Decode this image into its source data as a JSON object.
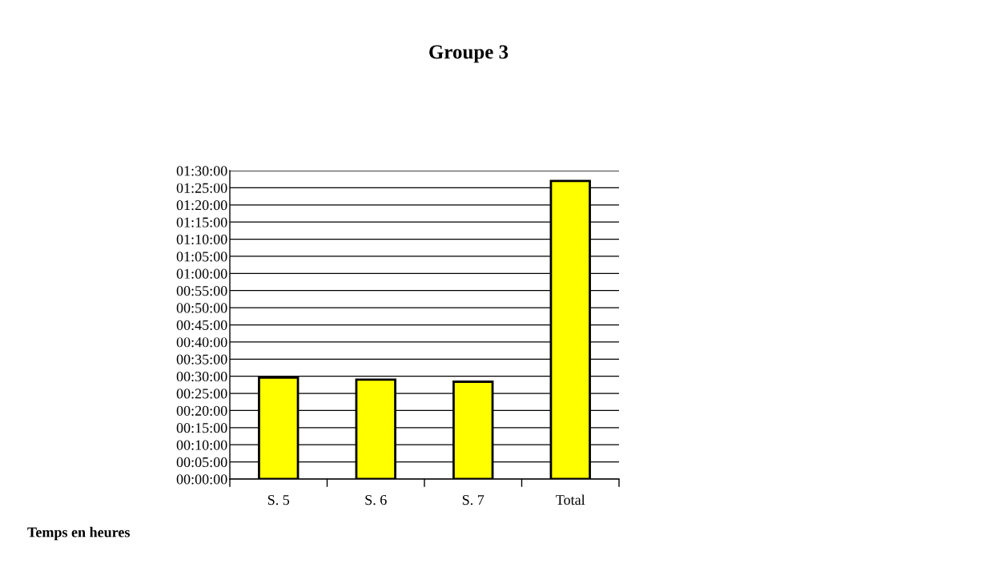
{
  "chart_data": {
    "type": "bar",
    "title": "Groupe 3",
    "categories": [
      "S. 5",
      "S. 6",
      "S. 7",
      "Total"
    ],
    "values": [
      29.6,
      29.0,
      28.4,
      87.0
    ],
    "color": "#ffff00",
    "ylim": [
      0,
      90
    ],
    "yticks": [
      {
        "value": 0,
        "label": "00:00:00"
      },
      {
        "value": 5,
        "label": "00:05:00"
      },
      {
        "value": 10,
        "label": "00:10:00"
      },
      {
        "value": 15,
        "label": "00:15:00"
      },
      {
        "value": 20,
        "label": "00:20:00"
      },
      {
        "value": 25,
        "label": "00:25:00"
      },
      {
        "value": 30,
        "label": "00:30:00"
      },
      {
        "value": 35,
        "label": "00:35:00"
      },
      {
        "value": 40,
        "label": "00:40:00"
      },
      {
        "value": 45,
        "label": "00:45:00"
      },
      {
        "value": 50,
        "label": "00:50:00"
      },
      {
        "value": 55,
        "label": "00:55:00"
      },
      {
        "value": 60,
        "label": "01:00:00"
      },
      {
        "value": 65,
        "label": "01:05:00"
      },
      {
        "value": 70,
        "label": "01:10:00"
      },
      {
        "value": 75,
        "label": "01:15:00"
      },
      {
        "value": 80,
        "label": "01:20:00"
      },
      {
        "value": 85,
        "label": "01:25:00"
      },
      {
        "value": 90,
        "label": "01:30:00"
      }
    ],
    "grid": "y",
    "annotations": [
      "Temps en heures"
    ]
  }
}
